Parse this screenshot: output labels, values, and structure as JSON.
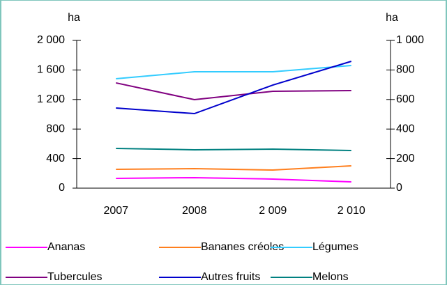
{
  "chart_data": {
    "type": "line",
    "ylabel": "ha",
    "y2label": "ha",
    "categories": [
      "2007",
      "2008",
      "2 009",
      "2 010"
    ],
    "ylim": [
      0,
      2000
    ],
    "yticks": [
      0,
      400,
      800,
      {
        "value": 1200,
        "label": "1 200"
      },
      {
        "value": 1600,
        "label": "1 600"
      },
      {
        "value": 2000,
        "label": "2 000"
      }
    ],
    "y2lim": [
      0,
      1000
    ],
    "y2ticks": [
      0,
      200,
      400,
      600,
      800,
      {
        "value": 1000,
        "label": "1 000"
      }
    ],
    "legend": "bottom",
    "series": [
      {
        "name": "Ananas",
        "color": "#ff00ff",
        "values": [
          132,
          142,
          123,
          85
        ]
      },
      {
        "name": "Bananes créoles",
        "color": "#ff7f1e",
        "values": [
          255,
          264,
          245,
          302
        ]
      },
      {
        "name": "Légumes",
        "color": "#33ccff",
        "values": [
          1481,
          1575,
          1575,
          1660
        ]
      },
      {
        "name": "Tubercules",
        "color": "#800080",
        "values": [
          1425,
          1198,
          1311,
          1321
        ]
      },
      {
        "name": "Autres fruits",
        "color": "#0000cc",
        "values": [
          1085,
          1009,
          1396,
          1717
        ]
      },
      {
        "name": "Melons",
        "color": "#008080",
        "values": [
          538,
          519,
          528,
          509
        ]
      }
    ]
  }
}
